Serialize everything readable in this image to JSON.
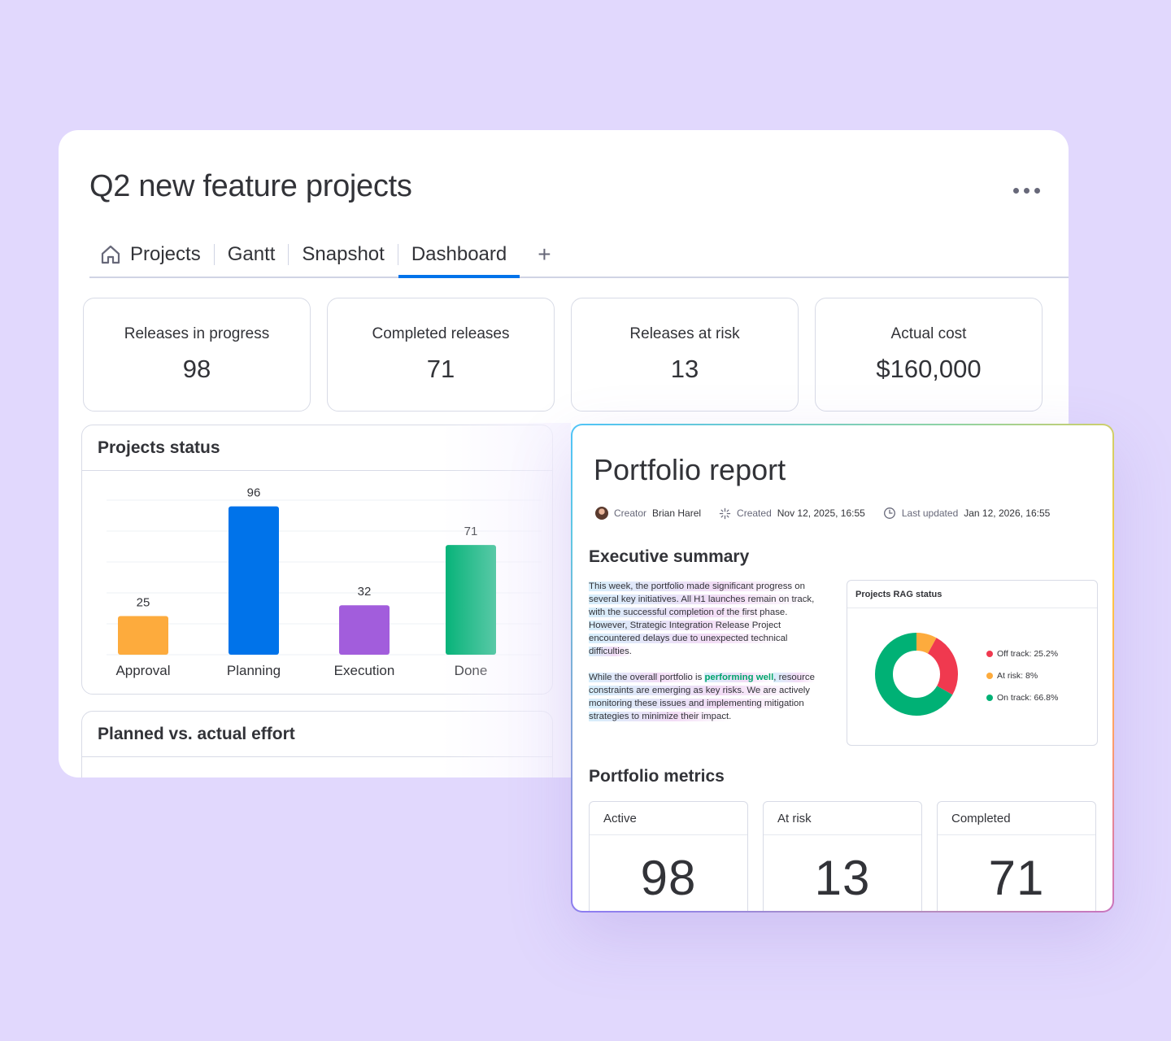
{
  "board": {
    "title": "Q2 new feature projects",
    "tabs": [
      {
        "label": "Projects",
        "icon": "home-icon"
      },
      {
        "label": "Gantt"
      },
      {
        "label": "Snapshot"
      },
      {
        "label": "Dashboard",
        "active": true
      }
    ],
    "add_tab": "+",
    "kpis": [
      {
        "label": "Releases in progress",
        "value": "98"
      },
      {
        "label": "Completed releases",
        "value": "71"
      },
      {
        "label": "Releases at risk",
        "value": "13"
      },
      {
        "label": "Actual cost",
        "value": "$160,000"
      }
    ],
    "panels": {
      "status_title": "Projects status",
      "effort_title": "Planned vs. actual effort"
    }
  },
  "chart_data": {
    "type": "bar",
    "categories": [
      "Approval",
      "Planning",
      "Execution",
      "Done"
    ],
    "values": [
      25,
      96,
      32,
      71
    ],
    "colors": [
      "#fdab3d",
      "#0073ea",
      "#a25ddc",
      "#00b175"
    ],
    "ylim": [
      0,
      100
    ],
    "grid": true
  },
  "report": {
    "title": "Portfolio report",
    "meta": {
      "creator_label": "Creator",
      "creator": "Brian Harel",
      "created_label": "Created",
      "created": "Nov 12, 2025, 16:55",
      "updated_label": "Last updated",
      "updated": "Jan 12, 2026, 16:55"
    },
    "summary_title": "Executive summary",
    "summary_p1": "This week, the portfolio made significant progress on several key initiatives. All H1 launches remain on track, with the successful completion of the first phase. However, Strategic Integration Release Project encountered delays due to unexpected technical difficulties.",
    "summary_p2_before": "While the overall portfolio is ",
    "summary_p2_highlight": "performing well",
    "summary_p2_after": ", resource constraints are emerging as key risks. We are actively monitoring these issues and implementing mitigation strategies to minimize their impact.",
    "rag": {
      "title": "Projects RAG status",
      "items": [
        {
          "label": "Off track: 25.2%",
          "value": 25.2,
          "color": "#f0394f"
        },
        {
          "label": "At risk: 8%",
          "value": 8,
          "color": "#fdab3d"
        },
        {
          "label": "On track: 66.8%",
          "value": 66.8,
          "color": "#00b175"
        }
      ]
    },
    "metrics_title": "Portfolio metrics",
    "metrics": [
      {
        "label": "Active",
        "value": "98"
      },
      {
        "label": "At risk",
        "value": "13"
      },
      {
        "label": "Completed",
        "value": "71"
      }
    ]
  }
}
